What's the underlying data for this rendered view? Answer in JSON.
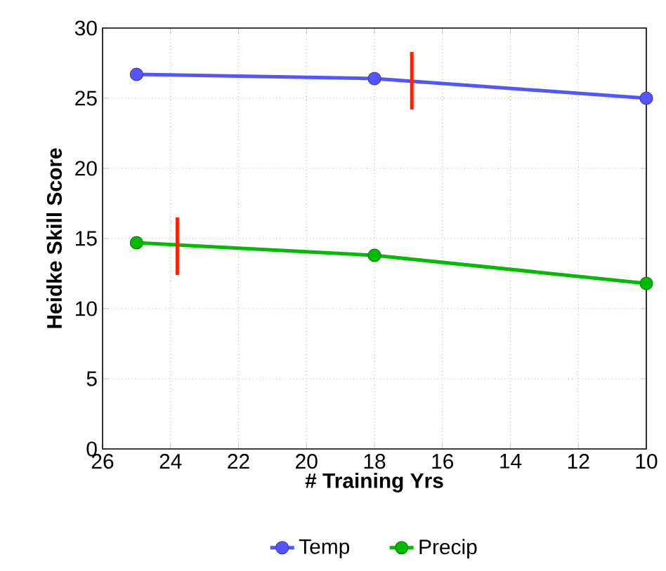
{
  "chart_data": {
    "type": "line",
    "xlabel": "# Training Yrs",
    "ylabel": "Heidke Skill Score",
    "xlim": [
      26,
      10
    ],
    "ylim": [
      0,
      30
    ],
    "xticks": [
      26,
      24,
      22,
      20,
      18,
      16,
      14,
      12,
      10
    ],
    "yticks": [
      0,
      5,
      10,
      15,
      20,
      25,
      30
    ],
    "grid": true,
    "legend": "bottom",
    "marker": "circle",
    "line_style": "solid",
    "series": [
      {
        "name": "Temp",
        "color": "#5555ff",
        "x": [
          25,
          18,
          10
        ],
        "values": [
          26.7,
          26.4,
          25.0
        ]
      },
      {
        "name": "Precip",
        "color": "#00bb00",
        "x": [
          25,
          18,
          10
        ],
        "values": [
          14.7,
          13.8,
          11.8
        ]
      },
      {
        "color": "#ff2200",
        "marker": "none",
        "x": [
          16.9,
          16.9
        ],
        "values": [
          24.2,
          28.3
        ]
      },
      {
        "color": "#ff2200",
        "marker": "none",
        "x": [
          23.8,
          23.8
        ],
        "values": [
          12.4,
          16.5
        ]
      }
    ]
  }
}
